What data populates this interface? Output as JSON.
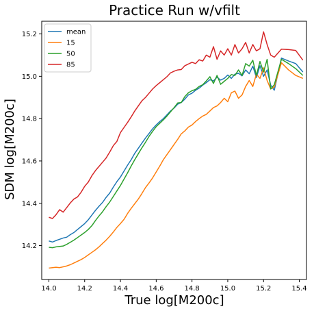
{
  "chart_data": {
    "type": "line",
    "title": "Practice Run w/vfilt",
    "xlabel": "True log[M200c]",
    "ylabel": "SDM log[M200c]",
    "xlim": [
      13.96,
      15.44
    ],
    "ylim": [
      14.04,
      15.26
    ],
    "xticks": [
      "14.0",
      "14.2",
      "14.4",
      "14.6",
      "14.8",
      "15.0",
      "15.2",
      "15.4"
    ],
    "yticks": [
      "14.2",
      "14.4",
      "14.6",
      "14.8",
      "15.0",
      "15.2"
    ],
    "grid": false,
    "legend_position": "top-left",
    "series": [
      {
        "name": "mean",
        "color": "#1f77b4",
        "points": [
          [
            14.0,
            14.222
          ],
          [
            14.02,
            14.217
          ],
          [
            14.04,
            14.224
          ],
          [
            14.06,
            14.23
          ],
          [
            14.08,
            14.236
          ],
          [
            14.1,
            14.24
          ],
          [
            14.12,
            14.252
          ],
          [
            14.14,
            14.262
          ],
          [
            14.16,
            14.276
          ],
          [
            14.18,
            14.29
          ],
          [
            14.2,
            14.304
          ],
          [
            14.22,
            14.322
          ],
          [
            14.24,
            14.344
          ],
          [
            14.26,
            14.366
          ],
          [
            14.28,
            14.386
          ],
          [
            14.3,
            14.404
          ],
          [
            14.32,
            14.428
          ],
          [
            14.34,
            14.448
          ],
          [
            14.36,
            14.476
          ],
          [
            14.38,
            14.502
          ],
          [
            14.4,
            14.524
          ],
          [
            14.42,
            14.552
          ],
          [
            14.44,
            14.58
          ],
          [
            14.46,
            14.606
          ],
          [
            14.48,
            14.636
          ],
          [
            14.5,
            14.66
          ],
          [
            14.52,
            14.684
          ],
          [
            14.54,
            14.708
          ],
          [
            14.56,
            14.73
          ],
          [
            14.58,
            14.752
          ],
          [
            14.6,
            14.77
          ],
          [
            14.62,
            14.786
          ],
          [
            14.64,
            14.8
          ],
          [
            14.66,
            14.818
          ],
          [
            14.68,
            14.836
          ],
          [
            14.7,
            14.85
          ],
          [
            14.72,
            14.868
          ],
          [
            14.74,
            14.876
          ],
          [
            14.76,
            14.892
          ],
          [
            14.78,
            14.912
          ],
          [
            14.8,
            14.92
          ],
          [
            14.82,
            14.934
          ],
          [
            14.84,
            14.944
          ],
          [
            14.86,
            14.958
          ],
          [
            14.88,
            14.97
          ],
          [
            14.9,
            14.984
          ],
          [
            14.92,
            14.978
          ],
          [
            14.94,
            14.996
          ],
          [
            14.96,
            14.982
          ],
          [
            14.98,
            14.99
          ],
          [
            15.0,
            15.006
          ],
          [
            15.02,
            14.99
          ],
          [
            15.04,
            15.01
          ],
          [
            15.06,
            15.014
          ],
          [
            15.08,
            15.002
          ],
          [
            15.1,
            15.03
          ],
          [
            15.12,
            15.012
          ],
          [
            15.14,
            15.048
          ],
          [
            15.16,
            14.994
          ],
          [
            15.18,
            15.05
          ],
          [
            15.2,
            15.0
          ],
          [
            15.22,
            15.03
          ],
          [
            15.24,
            14.958
          ],
          [
            15.26,
            14.934
          ],
          [
            15.3,
            15.086
          ],
          [
            15.34,
            15.072
          ],
          [
            15.38,
            15.06
          ],
          [
            15.42,
            15.02
          ]
        ]
      },
      {
        "name": "15",
        "color": "#ff7f0e",
        "points": [
          [
            14.0,
            14.094
          ],
          [
            14.02,
            14.096
          ],
          [
            14.04,
            14.098
          ],
          [
            14.06,
            14.096
          ],
          [
            14.08,
            14.1
          ],
          [
            14.1,
            14.104
          ],
          [
            14.12,
            14.11
          ],
          [
            14.14,
            14.118
          ],
          [
            14.16,
            14.126
          ],
          [
            14.18,
            14.134
          ],
          [
            14.2,
            14.144
          ],
          [
            14.22,
            14.156
          ],
          [
            14.24,
            14.168
          ],
          [
            14.26,
            14.18
          ],
          [
            14.28,
            14.194
          ],
          [
            14.3,
            14.21
          ],
          [
            14.32,
            14.226
          ],
          [
            14.34,
            14.244
          ],
          [
            14.36,
            14.264
          ],
          [
            14.38,
            14.286
          ],
          [
            14.4,
            14.304
          ],
          [
            14.42,
            14.324
          ],
          [
            14.44,
            14.352
          ],
          [
            14.46,
            14.376
          ],
          [
            14.48,
            14.398
          ],
          [
            14.5,
            14.42
          ],
          [
            14.52,
            14.446
          ],
          [
            14.54,
            14.474
          ],
          [
            14.56,
            14.496
          ],
          [
            14.58,
            14.52
          ],
          [
            14.6,
            14.548
          ],
          [
            14.62,
            14.576
          ],
          [
            14.64,
            14.606
          ],
          [
            14.66,
            14.63
          ],
          [
            14.68,
            14.654
          ],
          [
            14.7,
            14.678
          ],
          [
            14.72,
            14.702
          ],
          [
            14.74,
            14.728
          ],
          [
            14.76,
            14.742
          ],
          [
            14.78,
            14.76
          ],
          [
            14.8,
            14.77
          ],
          [
            14.82,
            14.786
          ],
          [
            14.84,
            14.8
          ],
          [
            14.86,
            14.812
          ],
          [
            14.88,
            14.82
          ],
          [
            14.9,
            14.836
          ],
          [
            14.92,
            14.852
          ],
          [
            14.94,
            14.86
          ],
          [
            14.96,
            14.876
          ],
          [
            14.98,
            14.896
          ],
          [
            15.0,
            14.88
          ],
          [
            15.02,
            14.922
          ],
          [
            15.04,
            14.93
          ],
          [
            15.06,
            14.896
          ],
          [
            15.08,
            14.912
          ],
          [
            15.1,
            14.952
          ],
          [
            15.12,
            14.98
          ],
          [
            15.14,
            14.952
          ],
          [
            15.16,
            15.01
          ],
          [
            15.18,
            14.99
          ],
          [
            15.2,
            15.04
          ],
          [
            15.22,
            14.98
          ],
          [
            15.24,
            14.94
          ],
          [
            15.26,
            14.95
          ],
          [
            15.3,
            15.064
          ],
          [
            15.34,
            15.03
          ],
          [
            15.38,
            15.004
          ],
          [
            15.42,
            14.99
          ]
        ]
      },
      {
        "name": "50",
        "color": "#2ca02c",
        "points": [
          [
            14.0,
            14.192
          ],
          [
            14.02,
            14.19
          ],
          [
            14.04,
            14.194
          ],
          [
            14.06,
            14.196
          ],
          [
            14.08,
            14.198
          ],
          [
            14.1,
            14.206
          ],
          [
            14.12,
            14.216
          ],
          [
            14.14,
            14.226
          ],
          [
            14.16,
            14.238
          ],
          [
            14.18,
            14.25
          ],
          [
            14.2,
            14.262
          ],
          [
            14.22,
            14.276
          ],
          [
            14.24,
            14.294
          ],
          [
            14.26,
            14.318
          ],
          [
            14.28,
            14.34
          ],
          [
            14.3,
            14.36
          ],
          [
            14.32,
            14.384
          ],
          [
            14.34,
            14.406
          ],
          [
            14.36,
            14.432
          ],
          [
            14.38,
            14.458
          ],
          [
            14.4,
            14.484
          ],
          [
            14.42,
            14.514
          ],
          [
            14.44,
            14.544
          ],
          [
            14.46,
            14.576
          ],
          [
            14.48,
            14.606
          ],
          [
            14.5,
            14.634
          ],
          [
            14.52,
            14.662
          ],
          [
            14.54,
            14.688
          ],
          [
            14.56,
            14.716
          ],
          [
            14.58,
            14.74
          ],
          [
            14.6,
            14.762
          ],
          [
            14.62,
            14.778
          ],
          [
            14.64,
            14.794
          ],
          [
            14.66,
            14.812
          ],
          [
            14.68,
            14.832
          ],
          [
            14.7,
            14.852
          ],
          [
            14.72,
            14.874
          ],
          [
            14.74,
            14.876
          ],
          [
            14.76,
            14.904
          ],
          [
            14.78,
            14.922
          ],
          [
            14.8,
            14.932
          ],
          [
            14.82,
            14.938
          ],
          [
            14.84,
            14.952
          ],
          [
            14.86,
            14.96
          ],
          [
            14.88,
            14.978
          ],
          [
            14.9,
            14.998
          ],
          [
            14.92,
            14.966
          ],
          [
            14.94,
            15.004
          ],
          [
            14.96,
            14.962
          ],
          [
            14.98,
            14.976
          ],
          [
            15.0,
            14.99
          ],
          [
            15.02,
            15.008
          ],
          [
            15.04,
            15.004
          ],
          [
            15.06,
            15.03
          ],
          [
            15.08,
            15.004
          ],
          [
            15.1,
            15.06
          ],
          [
            15.12,
            15.048
          ],
          [
            15.14,
            15.076
          ],
          [
            15.16,
            15.004
          ],
          [
            15.18,
            15.07
          ],
          [
            15.2,
            15.02
          ],
          [
            15.22,
            15.08
          ],
          [
            15.24,
            14.94
          ],
          [
            15.26,
            14.96
          ],
          [
            15.3,
            15.08
          ],
          [
            15.34,
            15.06
          ],
          [
            15.38,
            15.036
          ],
          [
            15.42,
            15.004
          ]
        ]
      },
      {
        "name": "85",
        "color": "#d62728",
        "points": [
          [
            14.0,
            14.334
          ],
          [
            14.02,
            14.328
          ],
          [
            14.04,
            14.346
          ],
          [
            14.06,
            14.37
          ],
          [
            14.08,
            14.358
          ],
          [
            14.1,
            14.38
          ],
          [
            14.12,
            14.402
          ],
          [
            14.14,
            14.42
          ],
          [
            14.16,
            14.43
          ],
          [
            14.18,
            14.452
          ],
          [
            14.2,
            14.48
          ],
          [
            14.22,
            14.5
          ],
          [
            14.24,
            14.53
          ],
          [
            14.26,
            14.554
          ],
          [
            14.28,
            14.574
          ],
          [
            14.3,
            14.594
          ],
          [
            14.32,
            14.614
          ],
          [
            14.34,
            14.642
          ],
          [
            14.36,
            14.672
          ],
          [
            14.38,
            14.692
          ],
          [
            14.4,
            14.734
          ],
          [
            14.42,
            14.758
          ],
          [
            14.44,
            14.782
          ],
          [
            14.46,
            14.808
          ],
          [
            14.48,
            14.836
          ],
          [
            14.5,
            14.86
          ],
          [
            14.52,
            14.884
          ],
          [
            14.54,
            14.9
          ],
          [
            14.56,
            14.92
          ],
          [
            14.58,
            14.94
          ],
          [
            14.6,
            14.956
          ],
          [
            14.62,
            14.97
          ],
          [
            14.64,
            14.984
          ],
          [
            14.66,
            14.998
          ],
          [
            14.68,
            15.016
          ],
          [
            14.7,
            15.024
          ],
          [
            14.72,
            15.03
          ],
          [
            14.74,
            15.032
          ],
          [
            14.76,
            15.05
          ],
          [
            14.78,
            15.058
          ],
          [
            14.8,
            15.066
          ],
          [
            14.82,
            15.06
          ],
          [
            14.84,
            15.078
          ],
          [
            14.86,
            15.072
          ],
          [
            14.88,
            15.1
          ],
          [
            14.9,
            15.09
          ],
          [
            14.92,
            15.14
          ],
          [
            14.94,
            15.08
          ],
          [
            14.96,
            15.12
          ],
          [
            14.98,
            15.1
          ],
          [
            15.0,
            15.13
          ],
          [
            15.02,
            15.1
          ],
          [
            15.04,
            15.15
          ],
          [
            15.06,
            15.11
          ],
          [
            15.08,
            15.13
          ],
          [
            15.1,
            15.16
          ],
          [
            15.12,
            15.11
          ],
          [
            15.14,
            15.15
          ],
          [
            15.16,
            15.12
          ],
          [
            15.18,
            15.13
          ],
          [
            15.2,
            15.21
          ],
          [
            15.22,
            15.15
          ],
          [
            15.24,
            15.1
          ],
          [
            15.26,
            15.09
          ],
          [
            15.3,
            15.128
          ],
          [
            15.34,
            15.126
          ],
          [
            15.38,
            15.122
          ],
          [
            15.42,
            15.076
          ]
        ]
      }
    ]
  }
}
